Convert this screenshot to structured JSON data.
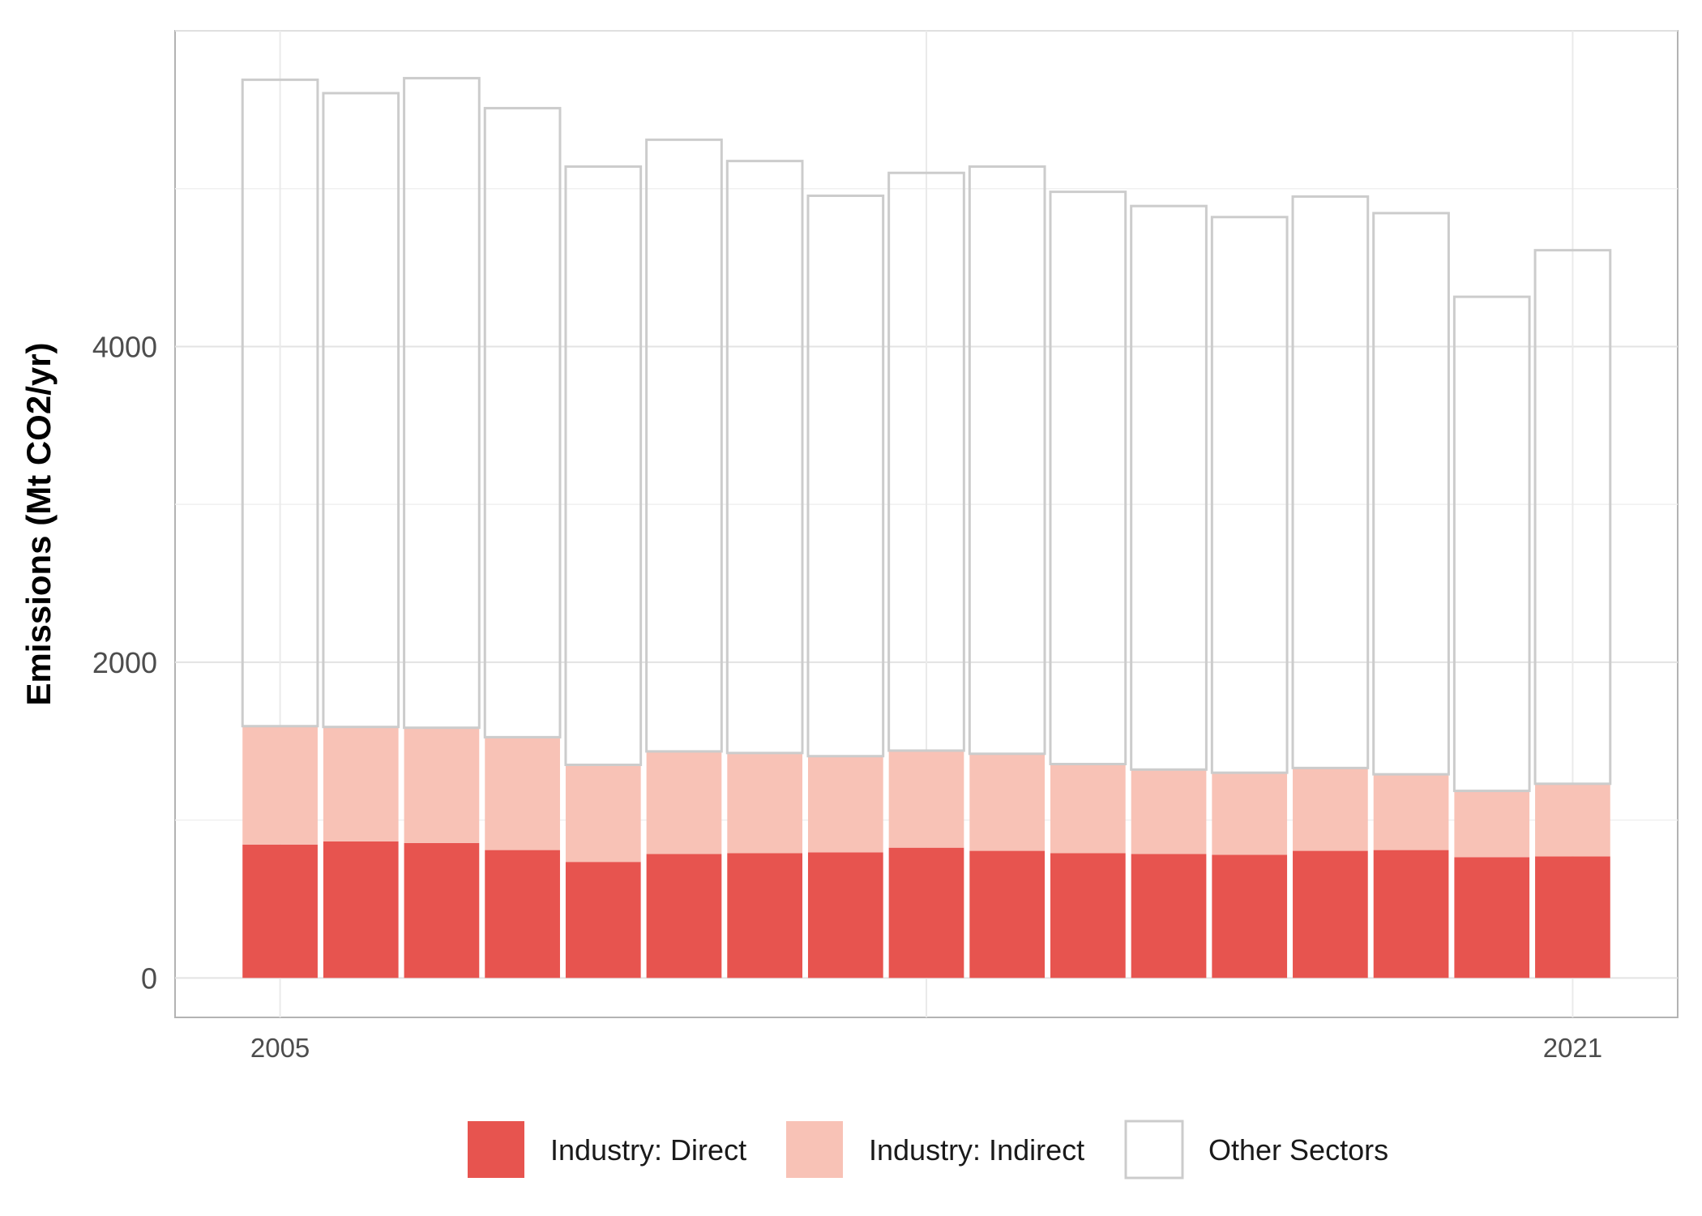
{
  "chart_data": {
    "type": "bar",
    "stacked": true,
    "xlabel": "",
    "ylabel": "Emissions (Mt CO2/yr)",
    "x": [
      2005,
      2006,
      2007,
      2008,
      2009,
      2010,
      2011,
      2012,
      2013,
      2014,
      2015,
      2016,
      2017,
      2018,
      2019,
      2020,
      2021
    ],
    "x_tick_labels": [
      "2005",
      "2021"
    ],
    "y_ticks": [
      0,
      2000,
      4000
    ],
    "ylim": [
      -250,
      6000
    ],
    "xlim": [
      2003.7,
      2022.3
    ],
    "grid": true,
    "legend_position": "bottom",
    "series": [
      {
        "name": "Industry: Direct",
        "color": "#E7544F",
        "values": [
          845,
          865,
          855,
          810,
          735,
          785,
          790,
          795,
          825,
          805,
          790,
          785,
          780,
          805,
          810,
          765,
          770
        ]
      },
      {
        "name": "Industry: Indirect",
        "color": "#F8C2B6",
        "values": [
          750,
          725,
          730,
          715,
          615,
          650,
          635,
          610,
          615,
          615,
          565,
          535,
          520,
          525,
          480,
          420,
          460
        ]
      },
      {
        "name": "Other Sectors",
        "color": "#FFFFFF",
        "outline": "#CCCCCC",
        "values": [
          4095,
          4015,
          4115,
          3985,
          3790,
          3875,
          3750,
          3550,
          3660,
          3720,
          3625,
          3570,
          3520,
          3620,
          3555,
          3130,
          3380
        ]
      }
    ]
  }
}
